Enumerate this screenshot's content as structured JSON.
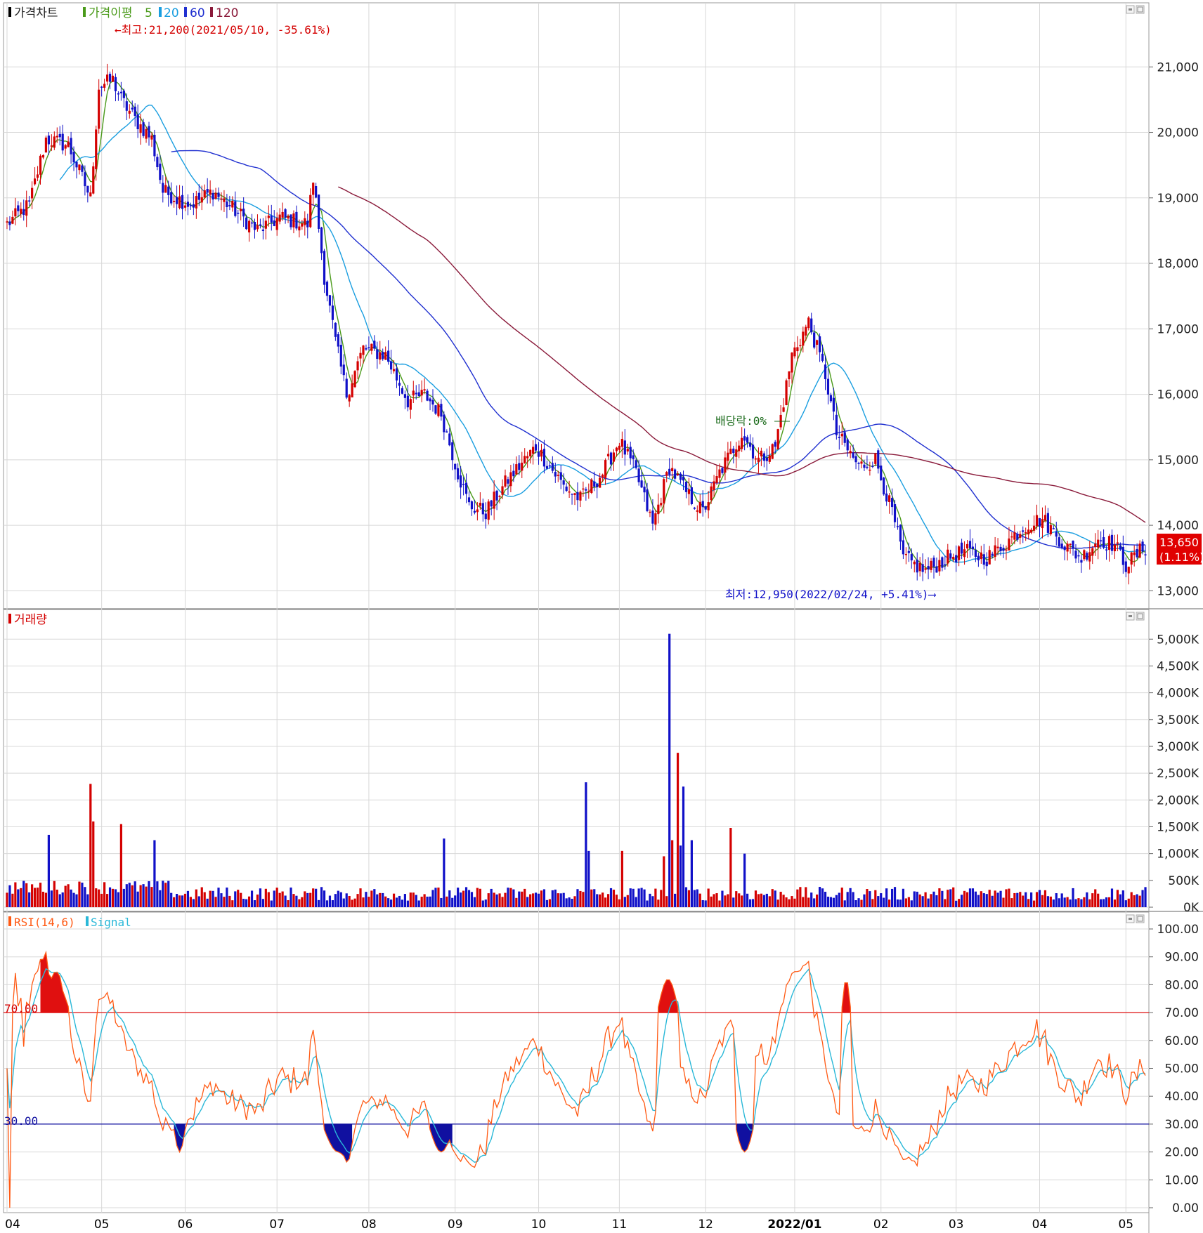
{
  "colors": {
    "up": "#d40000",
    "down": "#1010c8",
    "ma5": "#4a9a1a",
    "ma20": "#1a9ee0",
    "ma60": "#2030d0",
    "ma120": "#8a1a3a",
    "rsi": "#ff5a14",
    "signal": "#2ab8d8",
    "overbought": "#e01010",
    "oversold": "#1010a0",
    "grid": "#d8d8d8"
  },
  "price_panel": {
    "title": "가격차트",
    "ma_label": "가격이평",
    "ma_periods": [
      "5",
      "20",
      "60",
      "120"
    ],
    "high_note": "←최고:21,200(2021/05/10, -35.61%)",
    "low_note": "최저:12,950(2022/02/24, +5.41%)⟶",
    "dividend_note": "배당락:0%",
    "last_price": "13,650",
    "last_change": "(1.11%)",
    "y_ticks": [
      "21,000",
      "20,000",
      "19,000",
      "18,000",
      "17,000",
      "16,000",
      "15,000",
      "14,000",
      "13,000"
    ]
  },
  "volume_panel": {
    "title": "거래량",
    "y_ticks": [
      "5,000K",
      "4,500K",
      "4,000K",
      "3,500K",
      "3,000K",
      "2,500K",
      "2,000K",
      "1,500K",
      "1,000K",
      "500K",
      "0K"
    ]
  },
  "rsi_panel": {
    "title": "RSI(14,6)",
    "signal_label": "Signal",
    "level_high": "70.00",
    "level_low": "30.00",
    "y_ticks": [
      "100.00",
      "90.00",
      "80.00",
      "70.00",
      "60.00",
      "50.00",
      "40.00",
      "30.00",
      "20.00",
      "10.00",
      "0.00"
    ]
  },
  "x_axis": {
    "labels": [
      "04",
      "05",
      "06",
      "07",
      "08",
      "09",
      "10",
      "11",
      "12",
      "2022/01",
      "02",
      "03",
      "04",
      "05"
    ]
  },
  "chart_data": {
    "type": "candlestick",
    "price_range": [
      12800,
      21700
    ],
    "volume_range": [
      0,
      5200
    ],
    "rsi_range": [
      0,
      100
    ],
    "months": [
      "04",
      "05",
      "06",
      "07",
      "08",
      "09",
      "10",
      "11",
      "12",
      "2022/01",
      "02",
      "03",
      "04",
      "05"
    ],
    "price_anchors": [
      [
        0,
        18600
      ],
      [
        8,
        18900
      ],
      [
        14,
        19900
      ],
      [
        22,
        19800
      ],
      [
        30,
        19000
      ],
      [
        33,
        20700
      ],
      [
        38,
        20800
      ],
      [
        41,
        20500
      ],
      [
        46,
        20200
      ],
      [
        52,
        19900
      ],
      [
        56,
        19100
      ],
      [
        66,
        18900
      ],
      [
        74,
        19100
      ],
      [
        82,
        18800
      ],
      [
        90,
        18500
      ],
      [
        98,
        18700
      ],
      [
        108,
        18600
      ],
      [
        110,
        19300
      ],
      [
        114,
        17800
      ],
      [
        118,
        16800
      ],
      [
        122,
        16000
      ],
      [
        128,
        16700
      ],
      [
        136,
        16600
      ],
      [
        144,
        15900
      ],
      [
        150,
        16000
      ],
      [
        156,
        15700
      ],
      [
        162,
        14800
      ],
      [
        166,
        14300
      ],
      [
        172,
        14200
      ],
      [
        180,
        14700
      ],
      [
        190,
        15200
      ],
      [
        200,
        14600
      ],
      [
        206,
        14400
      ],
      [
        214,
        14800
      ],
      [
        220,
        15300
      ],
      [
        226,
        14800
      ],
      [
        232,
        14000
      ],
      [
        238,
        14900
      ],
      [
        244,
        14500
      ],
      [
        250,
        14200
      ],
      [
        256,
        14800
      ],
      [
        264,
        15400
      ],
      [
        270,
        15000
      ],
      [
        276,
        15200
      ],
      [
        282,
        16600
      ],
      [
        288,
        17100
      ],
      [
        294,
        16300
      ],
      [
        298,
        15400
      ],
      [
        306,
        14900
      ],
      [
        312,
        15000
      ],
      [
        318,
        14200
      ],
      [
        322,
        13500
      ],
      [
        330,
        13300
      ],
      [
        338,
        13500
      ],
      [
        344,
        13600
      ],
      [
        352,
        13500
      ],
      [
        358,
        13700
      ],
      [
        366,
        14000
      ],
      [
        372,
        14100
      ],
      [
        380,
        13700
      ],
      [
        386,
        13500
      ],
      [
        392,
        13800
      ],
      [
        398,
        13700
      ],
      [
        402,
        13400
      ],
      [
        406,
        13550
      ],
      [
        408,
        13650
      ]
    ],
    "volume_spikes": [
      [
        15,
        1350
      ],
      [
        30,
        2300
      ],
      [
        31,
        1600
      ],
      [
        41,
        1550
      ],
      [
        53,
        1250
      ],
      [
        157,
        1280
      ],
      [
        208,
        2330
      ],
      [
        209,
        1050
      ],
      [
        221,
        1050
      ],
      [
        236,
        950
      ],
      [
        238,
        5100
      ],
      [
        239,
        1250
      ],
      [
        241,
        2880
      ],
      [
        242,
        1150
      ],
      [
        243,
        2250
      ],
      [
        246,
        1250
      ],
      [
        260,
        1480
      ],
      [
        265,
        1000
      ]
    ],
    "rsi_overbought_periods": [
      [
        12,
        22
      ],
      [
        234,
        241
      ],
      [
        300,
        303
      ]
    ],
    "rsi_oversold_periods": [
      [
        60,
        64
      ],
      [
        114,
        124
      ],
      [
        152,
        160
      ],
      [
        262,
        268
      ]
    ],
    "annotations": {
      "high": {
        "value": 21200,
        "date": "2021/05/10",
        "change": "-35.61%"
      },
      "low": {
        "value": 12950,
        "date": "2022/02/24",
        "change": "+5.41%"
      },
      "last": {
        "value": 13650,
        "change": "1.11%"
      }
    }
  }
}
